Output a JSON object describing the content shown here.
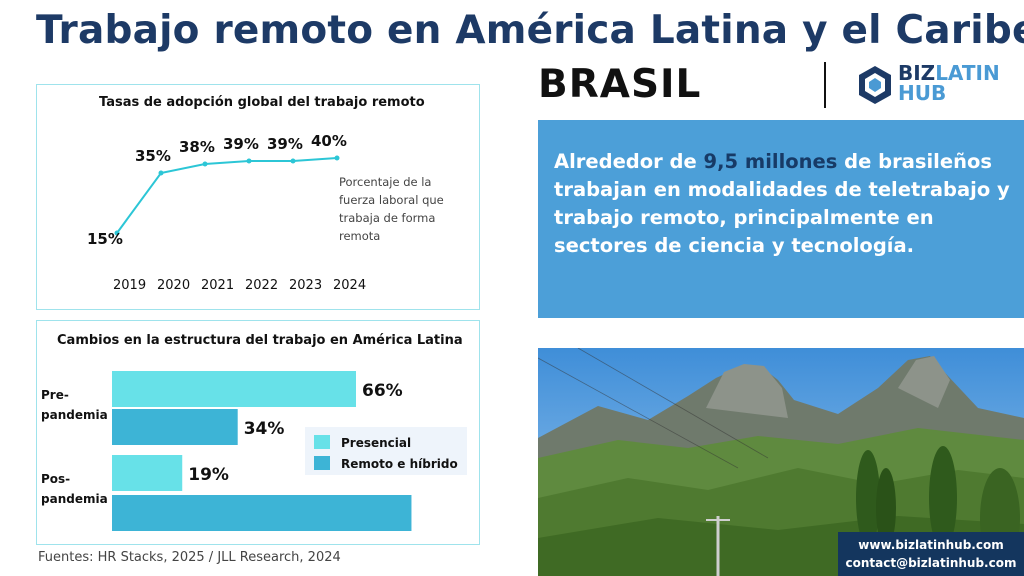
{
  "header": {
    "title": "Trabajo remoto en América Latina y el Caribe:",
    "subtitle": "BRASIL"
  },
  "logo": {
    "biz": "BIZ",
    "latin": "LATIN",
    "hub": "HUB",
    "icon": "bizlatinhub-logo-icon",
    "brand_color": "#1d3a66",
    "accent_color": "#4a9ad4"
  },
  "info": {
    "pre": "Alrededor de ",
    "highlight": "9,5 millones",
    "post": " de brasileños trabajan en modalidades de teletrabajo y trabajo remoto, principalmente en sectores de ciencia y tecnología.",
    "background": "#4c9fd8"
  },
  "photo": {
    "description_icon": "mountain-landscape-photo"
  },
  "contact": {
    "web": "www.bizlatinhub.com",
    "email": "contact@bizlatinhub.com"
  },
  "sources": "Fuentes: HR Stacks, 2025 / JLL Research, 2024",
  "chart_data": [
    {
      "type": "line",
      "title": "Tasas de adopción global del trabajo remoto",
      "x": [
        "2019",
        "2020",
        "2021",
        "2022",
        "2023",
        "2024"
      ],
      "series": [
        {
          "values": [
            15,
            35,
            38,
            39,
            39,
            40
          ],
          "labels": [
            "15%",
            "35%",
            "38%",
            "39%",
            "39%",
            "40%"
          ],
          "color": "#2cc6d6"
        }
      ],
      "annotation": "Porcentaje de la fuerza laboral que trabaja de forma remota",
      "ylim": [
        0,
        45
      ],
      "grid": false
    },
    {
      "type": "bar",
      "orientation": "horizontal",
      "title": "Cambios en la estructura del trabajo en América Latina",
      "categories": [
        "Pre-pandemia",
        "Pos-pandemia"
      ],
      "category_lines": [
        [
          "Pre-",
          "pandemia"
        ],
        [
          "Pos-",
          "pandemia"
        ]
      ],
      "series": [
        {
          "name": "Presencial",
          "values": [
            66,
            19
          ],
          "labels": [
            "66%",
            "19%"
          ],
          "color": "#67e1e8"
        },
        {
          "name": "Remoto e híbrido",
          "values": [
            34,
            81
          ],
          "labels": [
            "34%",
            ""
          ],
          "color": "#3db4d6"
        }
      ],
      "xlim": [
        0,
        100
      ],
      "legend": "right"
    }
  ]
}
